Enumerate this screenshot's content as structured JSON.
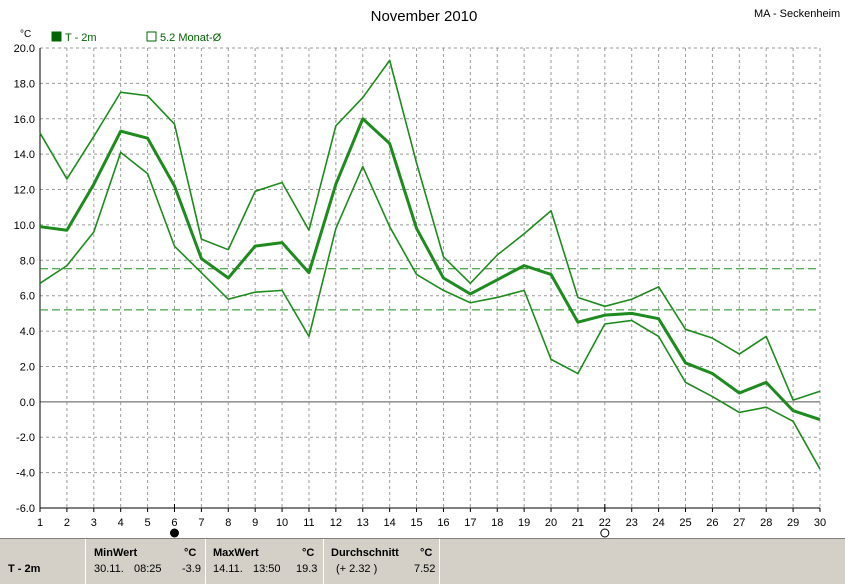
{
  "chart_data": {
    "type": "line",
    "title": "November 2010",
    "station": "MA - Seckenheim",
    "ylabel": "°C",
    "ylim": [
      -6,
      20
    ],
    "yticks": [
      "20.0",
      "18.0",
      "16.0",
      "14.0",
      "12.0",
      "10.0",
      "8.0",
      "6.0",
      "4.0",
      "2.0",
      "0.0",
      "-2.0",
      "-4.0",
      "-6.0"
    ],
    "x": [
      1,
      2,
      3,
      4,
      5,
      6,
      7,
      8,
      9,
      10,
      11,
      12,
      13,
      14,
      15,
      16,
      17,
      18,
      19,
      20,
      21,
      22,
      23,
      24,
      25,
      26,
      27,
      28,
      29,
      30
    ],
    "xlim": [
      1,
      30
    ],
    "grid": true,
    "legend": {
      "placement": "top-left",
      "items": [
        {
          "label": "T - 2m",
          "color": "#006400",
          "filled": true
        },
        {
          "label": "5.2 Monat-Ø",
          "color": "#006400",
          "filled": false
        }
      ]
    },
    "series": [
      {
        "name": "T - 2m",
        "role": "max",
        "color": "#1e8b1e",
        "values": [
          15.2,
          12.6,
          15.0,
          17.5,
          17.3,
          15.7,
          9.2,
          8.6,
          11.9,
          12.4,
          9.7,
          15.6,
          17.2,
          19.3,
          13.5,
          8.2,
          6.7,
          8.3,
          9.5,
          10.8,
          5.9,
          5.4,
          5.8,
          6.5,
          4.1,
          3.6,
          2.7,
          3.7,
          0.1,
          0.6
        ]
      },
      {
        "name": "T - 2m",
        "role": "mean",
        "color": "#1e8b1e",
        "values": [
          9.9,
          9.7,
          12.3,
          15.3,
          14.9,
          12.2,
          8.1,
          7.0,
          8.8,
          9.0,
          7.3,
          12.3,
          16.0,
          14.6,
          9.8,
          7.0,
          6.1,
          6.9,
          7.7,
          7.2,
          4.5,
          4.9,
          5.0,
          4.7,
          2.2,
          1.6,
          0.5,
          1.1,
          -0.5,
          -1.0
        ]
      },
      {
        "name": "T - 2m",
        "role": "min",
        "color": "#1e8b1e",
        "values": [
          6.7,
          7.7,
          9.6,
          14.1,
          12.9,
          8.8,
          7.3,
          5.8,
          6.2,
          6.3,
          3.7,
          9.8,
          13.3,
          9.9,
          7.2,
          6.3,
          5.6,
          5.9,
          6.3,
          2.4,
          1.6,
          4.4,
          4.6,
          3.7,
          1.1,
          0.3,
          -0.6,
          -0.3,
          -1.1,
          -3.8
        ]
      }
    ],
    "reference_lines": [
      {
        "label": "5.2 Monat-Ø",
        "value": 5.2,
        "color": "#1e8b1e"
      },
      {
        "value": 7.52,
        "color": "#1e8b1e"
      }
    ],
    "markers": [
      {
        "x": 6,
        "symbol": "filled-circle"
      },
      {
        "x": 22,
        "symbol": "open-circle"
      }
    ]
  },
  "panel": {
    "series1": "T - 2m",
    "series2": "Max.Wert",
    "min": {
      "header": "MinWert",
      "unit": "°C",
      "date": "30.11.",
      "time": "08:25",
      "value": "-3.9"
    },
    "max": {
      "header": "MaxWert",
      "unit": "°C",
      "date": "14.11.",
      "time": "13:50",
      "value": "19.3"
    },
    "avg": {
      "header": "Durchschnitt",
      "unit": "°C",
      "delta": "(+ 2.32 )",
      "value": "7.52"
    }
  }
}
